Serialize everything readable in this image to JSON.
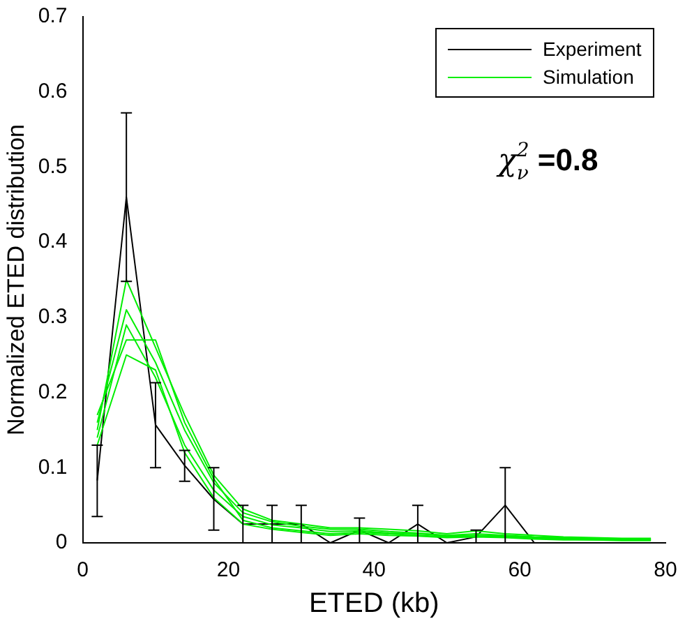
{
  "chart_data": {
    "type": "line",
    "xlabel": "ETED (kb)",
    "ylabel": "Normalized ETED distribution",
    "xlim": [
      0,
      80
    ],
    "xticks": [
      0,
      20,
      40,
      60,
      80
    ],
    "ylim": [
      0,
      0.7
    ],
    "yticks": [
      0,
      0.1,
      0.2,
      0.3,
      0.4,
      0.5,
      0.6,
      0.7
    ],
    "grid": false,
    "legend": "top right",
    "annotations": [
      "χ$_{ν}$$^{2}$ =0.8"
    ],
    "x": [
      2,
      6,
      10,
      14,
      18,
      22,
      26,
      30,
      34,
      38,
      42,
      46,
      50,
      54,
      58,
      62,
      66,
      70,
      74,
      78
    ],
    "series": [
      {
        "name": "Simulation",
        "color": "#00ee00",
        "values": [
          0.15,
          0.35,
          0.26,
          0.17,
          0.09,
          0.045,
          0.03,
          0.025,
          0.02,
          0.02,
          0.018,
          0.016,
          0.012,
          0.016,
          0.012,
          0.01,
          0.008,
          0.007,
          0.006,
          0.006
        ]
      },
      {
        "color": "#00ee00",
        "values": [
          0.16,
          0.31,
          0.24,
          0.15,
          0.08,
          0.04,
          0.028,
          0.022,
          0.018,
          0.018,
          0.015,
          0.013,
          0.01,
          0.012,
          0.01,
          0.008,
          0.007,
          0.006,
          0.005,
          0.005
        ]
      },
      {
        "color": "#00ee00",
        "values": [
          0.14,
          0.29,
          0.22,
          0.13,
          0.07,
          0.035,
          0.024,
          0.02,
          0.015,
          0.016,
          0.013,
          0.012,
          0.009,
          0.01,
          0.009,
          0.007,
          0.006,
          0.005,
          0.005,
          0.004
        ]
      },
      {
        "color": "#00ee00",
        "values": [
          0.17,
          0.27,
          0.27,
          0.16,
          0.085,
          0.03,
          0.02,
          0.016,
          0.012,
          0.014,
          0.012,
          0.01,
          0.008,
          0.009,
          0.008,
          0.006,
          0.005,
          0.004,
          0.004,
          0.004
        ]
      },
      {
        "color": "#00ee00",
        "values": [
          0.13,
          0.25,
          0.23,
          0.12,
          0.06,
          0.025,
          0.018,
          0.014,
          0.01,
          0.012,
          0.01,
          0.009,
          0.007,
          0.008,
          0.007,
          0.005,
          0.004,
          0.004,
          0.003,
          0.003
        ]
      },
      {
        "name": "Experiment",
        "color": "#000000",
        "values": [
          0.083,
          0.46,
          0.157,
          0.103,
          0.058,
          0.025,
          0.025,
          0.025,
          0,
          0.017,
          0,
          0.025,
          0,
          0.008,
          0.05,
          0,
          0,
          0,
          0,
          0
        ],
        "errors": [
          [
            0.035,
            0.13
          ],
          [
            0.348,
            0.572
          ],
          [
            0.1,
            0.213
          ],
          [
            0.082,
            0.123
          ],
          [
            0.017,
            0.1
          ],
          [
            0,
            0.05
          ],
          [
            0,
            0.05
          ],
          [
            0,
            0.05
          ],
          null,
          [
            0,
            0.033
          ],
          null,
          [
            0,
            0.05
          ],
          null,
          [
            0,
            0.017
          ],
          [
            0,
            0.1
          ],
          null,
          null,
          null,
          null,
          null
        ]
      }
    ]
  }
}
